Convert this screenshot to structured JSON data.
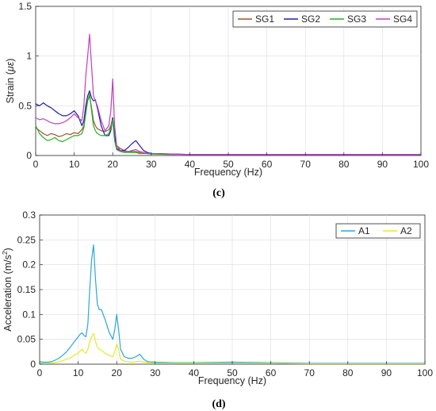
{
  "chart_data": [
    {
      "type": "line",
      "panel_label": "(c)",
      "xlabel": "Frequency (Hz)",
      "ylabel": "Strain (",
      "ylabel_unit": "με",
      "ylabel_close": ")",
      "xlim": [
        0,
        100
      ],
      "ylim": [
        0,
        1.5
      ],
      "xticks": [
        "0",
        "10",
        "20",
        "30",
        "40",
        "50",
        "60",
        "70",
        "80",
        "90",
        "100"
      ],
      "yticks": [
        "0",
        "0.5",
        "1",
        "1.5"
      ],
      "grid": true,
      "legend_position": "top-right",
      "series": [
        {
          "name": "SG1",
          "color": "#a0522d",
          "x": [
            0,
            1,
            2,
            3,
            4,
            5,
            6,
            7,
            8,
            9,
            10,
            11,
            12,
            12.5,
            13,
            13.5,
            14,
            14.5,
            15,
            15.5,
            16,
            17,
            18,
            19,
            19.5,
            20,
            20.5,
            21,
            22,
            23,
            24,
            25,
            26,
            27,
            28,
            29,
            30,
            35,
            40,
            50,
            60,
            70,
            80,
            90,
            100
          ],
          "y": [
            0.28,
            0.25,
            0.22,
            0.2,
            0.22,
            0.21,
            0.19,
            0.2,
            0.22,
            0.21,
            0.23,
            0.22,
            0.26,
            0.3,
            0.45,
            0.55,
            0.6,
            0.48,
            0.35,
            0.3,
            0.27,
            0.25,
            0.24,
            0.26,
            0.3,
            0.38,
            0.2,
            0.1,
            0.07,
            0.05,
            0.04,
            0.04,
            0.04,
            0.03,
            0.03,
            0.02,
            0.02,
            0.015,
            0.01,
            0.01,
            0.01,
            0.01,
            0.01,
            0.01,
            0.01
          ]
        },
        {
          "name": "SG2",
          "color": "#1f1fa8",
          "x": [
            0,
            1,
            2,
            3,
            4,
            5,
            6,
            7,
            8,
            9,
            10,
            11,
            12,
            12.5,
            13,
            13.5,
            14,
            14.5,
            15,
            15.5,
            16,
            17,
            18,
            19,
            19.5,
            20,
            20.5,
            21,
            22,
            23,
            24,
            25,
            26,
            27,
            28,
            29,
            30,
            35,
            40,
            50,
            60,
            70,
            80,
            90,
            100
          ],
          "y": [
            0.52,
            0.5,
            0.53,
            0.5,
            0.48,
            0.45,
            0.42,
            0.4,
            0.4,
            0.42,
            0.45,
            0.4,
            0.3,
            0.35,
            0.5,
            0.6,
            0.65,
            0.58,
            0.55,
            0.56,
            0.48,
            0.3,
            0.2,
            0.2,
            0.25,
            0.38,
            0.2,
            0.07,
            0.05,
            0.05,
            0.08,
            0.12,
            0.15,
            0.1,
            0.05,
            0.03,
            0.02,
            0.015,
            0.01,
            0.01,
            0.01,
            0.01,
            0.01,
            0.01,
            0.01
          ]
        },
        {
          "name": "SG3",
          "color": "#22b022",
          "x": [
            0,
            1,
            2,
            3,
            4,
            5,
            6,
            7,
            8,
            9,
            10,
            11,
            12,
            12.5,
            13,
            13.5,
            14,
            14.5,
            15,
            15.5,
            16,
            17,
            18,
            19,
            19.5,
            20,
            20.5,
            21,
            22,
            23,
            24,
            25,
            26,
            27,
            28,
            29,
            30,
            35,
            40,
            50,
            60,
            70,
            80,
            90,
            100
          ],
          "y": [
            0.3,
            0.22,
            0.18,
            0.15,
            0.16,
            0.18,
            0.15,
            0.14,
            0.16,
            0.18,
            0.2,
            0.2,
            0.22,
            0.28,
            0.42,
            0.55,
            0.62,
            0.45,
            0.3,
            0.25,
            0.22,
            0.2,
            0.2,
            0.22,
            0.28,
            0.36,
            0.15,
            0.06,
            0.04,
            0.03,
            0.03,
            0.03,
            0.03,
            0.02,
            0.02,
            0.02,
            0.015,
            0.01,
            0.01,
            0.01,
            0.01,
            0.01,
            0.01,
            0.01,
            0.01
          ]
        },
        {
          "name": "SG4",
          "color": "#c03ec0",
          "x": [
            0,
            1,
            2,
            3,
            4,
            5,
            6,
            7,
            8,
            9,
            10,
            11,
            12,
            12.5,
            13,
            13.5,
            14,
            14.5,
            15,
            15.5,
            16,
            17,
            18,
            19,
            19.5,
            20,
            20.5,
            21,
            22,
            23,
            24,
            25,
            26,
            27,
            28,
            29,
            30,
            35,
            40,
            50,
            60,
            70,
            80,
            90,
            100
          ],
          "y": [
            0.38,
            0.36,
            0.37,
            0.35,
            0.33,
            0.32,
            0.32,
            0.33,
            0.35,
            0.38,
            0.42,
            0.38,
            0.35,
            0.5,
            0.8,
            1.0,
            1.22,
            0.9,
            0.6,
            0.55,
            0.5,
            0.35,
            0.25,
            0.3,
            0.45,
            0.77,
            0.3,
            0.1,
            0.05,
            0.04,
            0.04,
            0.05,
            0.06,
            0.04,
            0.03,
            0.02,
            0.02,
            0.015,
            0.01,
            0.01,
            0.01,
            0.01,
            0.01,
            0.01,
            0.01
          ]
        }
      ]
    },
    {
      "type": "line",
      "panel_label": "(d)",
      "xlabel": "Frequency (Hz)",
      "ylabel": "Acceleration (m/s",
      "ylabel_sup": "2",
      "ylabel_close": ")",
      "xlim": [
        0,
        100
      ],
      "ylim": [
        0,
        0.3
      ],
      "xticks": [
        "0",
        "10",
        "20",
        "30",
        "40",
        "50",
        "60",
        "70",
        "80",
        "90",
        "100"
      ],
      "yticks": [
        "0",
        "0.05",
        "0.1",
        "0.15",
        "0.2",
        "0.25",
        "0.3"
      ],
      "grid": true,
      "legend_position": "top-right",
      "series": [
        {
          "name": "A1",
          "color": "#2aa8d8",
          "x": [
            0,
            1,
            2,
            3,
            4,
            5,
            6,
            7,
            8,
            9,
            10,
            10.5,
            11,
            11.5,
            12,
            12.5,
            13,
            13.5,
            14,
            14.5,
            15,
            15.5,
            16,
            17,
            18,
            19,
            19.5,
            20,
            20.5,
            21,
            22,
            23,
            24,
            25,
            26,
            27,
            28,
            30,
            35,
            40,
            50,
            60,
            70,
            80,
            90,
            100
          ],
          "y": [
            0.005,
            0.004,
            0.004,
            0.005,
            0.008,
            0.012,
            0.018,
            0.025,
            0.035,
            0.045,
            0.055,
            0.06,
            0.063,
            0.058,
            0.055,
            0.08,
            0.15,
            0.21,
            0.24,
            0.17,
            0.12,
            0.11,
            0.11,
            0.09,
            0.065,
            0.05,
            0.07,
            0.1,
            0.07,
            0.03,
            0.015,
            0.012,
            0.012,
            0.015,
            0.02,
            0.01,
            0.005,
            0.004,
            0.003,
            0.003,
            0.004,
            0.003,
            0.002,
            0.002,
            0.002,
            0.002
          ]
        },
        {
          "name": "A2",
          "color": "#e8e82a",
          "x": [
            0,
            1,
            2,
            3,
            4,
            5,
            6,
            7,
            8,
            9,
            10,
            10.5,
            11,
            11.5,
            12,
            12.5,
            13,
            13.5,
            14,
            14.5,
            15,
            15.5,
            16,
            17,
            18,
            19,
            19.5,
            20,
            20.5,
            21,
            22,
            23,
            24,
            25,
            26,
            27,
            28,
            30,
            35,
            40,
            50,
            60,
            70,
            80,
            90,
            100
          ],
          "y": [
            0.002,
            0.002,
            0.002,
            0.002,
            0.003,
            0.005,
            0.007,
            0.01,
            0.013,
            0.018,
            0.022,
            0.027,
            0.03,
            0.025,
            0.022,
            0.03,
            0.045,
            0.055,
            0.062,
            0.045,
            0.035,
            0.03,
            0.028,
            0.022,
            0.018,
            0.015,
            0.025,
            0.04,
            0.03,
            0.01,
            0.006,
            0.005,
            0.004,
            0.005,
            0.006,
            0.004,
            0.003,
            0.002,
            0.002,
            0.002,
            0.002,
            0.002,
            0.001,
            0.001,
            0.001,
            0.001
          ]
        }
      ]
    }
  ]
}
